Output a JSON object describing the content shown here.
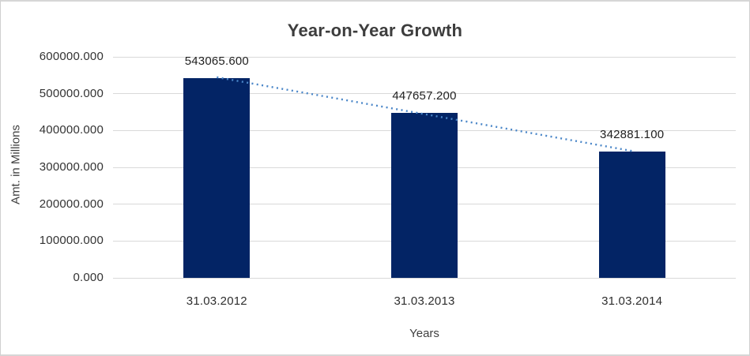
{
  "chart_data": {
    "type": "bar",
    "title": "Year-on-Year Growth",
    "xlabel": "Years",
    "ylabel": "Amt. in Millions",
    "categories": [
      "31.03.2012",
      "31.03.2013",
      "31.03.2014"
    ],
    "values": [
      543065.6,
      447657.2,
      342881.1
    ],
    "data_labels": [
      "543065.600",
      "447657.200",
      "342881.100"
    ],
    "ylim": [
      0,
      600000
    ],
    "y_tick_step": 100000,
    "y_tick_labels": [
      "0.000",
      "100000.000",
      "200000.000",
      "300000.000",
      "400000.000",
      "500000.000",
      "600000.000"
    ],
    "grid": true,
    "legend": "none",
    "trendline": {
      "type": "linear",
      "style": "dotted"
    },
    "colors": {
      "bar": "#032465",
      "gridline": "#d9d9d9",
      "trendline": "#4a86c8",
      "title_text": "#3d3d3d",
      "axis_text": "#3f3f3f",
      "label_text": "#1f1f1f",
      "background": "#ffffff",
      "border": "#d6d6d6"
    }
  }
}
